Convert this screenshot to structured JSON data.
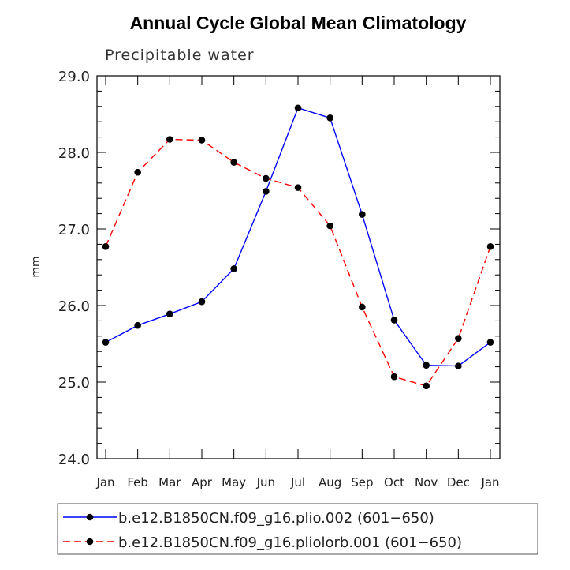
{
  "chart_data": {
    "type": "line",
    "title": "Annual Cycle Global Mean Climatology",
    "subtitle": "Precipitable water",
    "xlabel": "",
    "ylabel": "mm",
    "categories": [
      "Jan",
      "Feb",
      "Mar",
      "Apr",
      "May",
      "Jun",
      "Jul",
      "Aug",
      "Sep",
      "Oct",
      "Nov",
      "Dec",
      "Jan"
    ],
    "ylim": [
      24.0,
      29.0
    ],
    "yticks": [
      "24.0",
      "25.0",
      "26.0",
      "27.0",
      "28.0",
      "29.0"
    ],
    "series": [
      {
        "name": "b.e12.B1850CN.f09_g16.plio.002 (601−650)",
        "color": "#0000ff",
        "dash": "solid",
        "values": [
          25.52,
          25.74,
          25.89,
          26.05,
          26.48,
          27.49,
          28.58,
          28.45,
          27.19,
          25.81,
          25.22,
          25.21,
          25.52
        ]
      },
      {
        "name": "b.e12.B1850CN.f09_g16.pliolorb.001 (601−650)",
        "color": "#ff0000",
        "dash": "dashed",
        "values": [
          26.77,
          27.74,
          28.17,
          28.16,
          27.87,
          27.66,
          27.54,
          27.04,
          25.98,
          25.07,
          24.95,
          25.57,
          26.77
        ]
      }
    ],
    "marker_color": "#000000",
    "legend": "bottom",
    "grid": false
  }
}
